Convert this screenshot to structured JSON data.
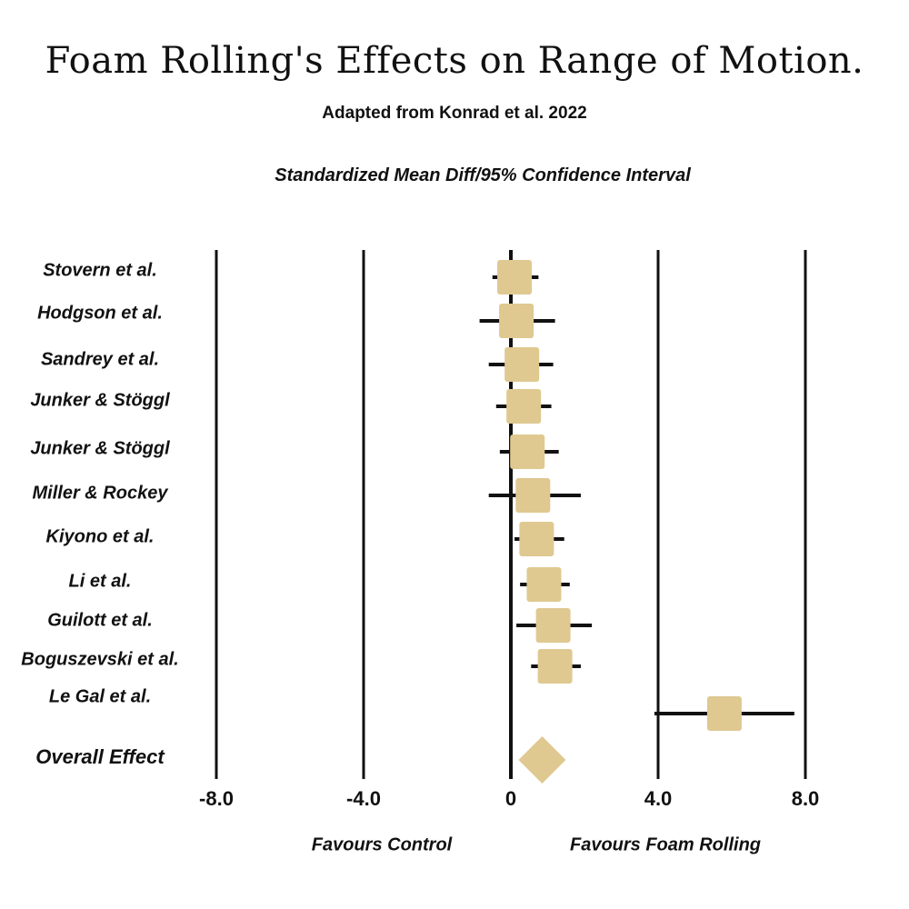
{
  "title": "Foam Rolling's Effects on Range of Motion.",
  "subtitle": "Adapted from Konrad et al. 2022",
  "chart_data": {
    "type": "forest",
    "title": "Foam Rolling's Effects on Range of Motion.",
    "subtitle": "Adapted from Konrad et al. 2022",
    "xlabel": "Standardized Mean Diff/95% Confidence Interval",
    "xlim": [
      -8.0,
      8.0
    ],
    "ticks": [
      -8.0,
      -4.0,
      0,
      4.0,
      8.0
    ],
    "tick_labels": [
      "-8.0",
      "-4.0",
      "0",
      "4.0",
      "8.0"
    ],
    "favours_left": "Favours Control",
    "favours_right": "Favours Foam Rolling",
    "studies": [
      {
        "name": "Stovern et al.",
        "smd": 0.1,
        "ci_low": -0.5,
        "ci_high": 0.75
      },
      {
        "name": "Hodgson et al.",
        "smd": 0.15,
        "ci_low": -0.85,
        "ci_high": 1.2
      },
      {
        "name": "Sandrey et al.",
        "smd": 0.3,
        "ci_low": -0.6,
        "ci_high": 1.15
      },
      {
        "name": "Junker & Stöggl",
        "smd": 0.35,
        "ci_low": -0.4,
        "ci_high": 1.1
      },
      {
        "name": "Junker & Stöggl",
        "smd": 0.45,
        "ci_low": -0.3,
        "ci_high": 1.3
      },
      {
        "name": "Miller & Rockey",
        "smd": 0.6,
        "ci_low": -0.6,
        "ci_high": 1.9
      },
      {
        "name": "Kiyono et al.",
        "smd": 0.7,
        "ci_low": 0.1,
        "ci_high": 1.45
      },
      {
        "name": "Li et al.",
        "smd": 0.9,
        "ci_low": 0.25,
        "ci_high": 1.6
      },
      {
        "name": "Guilott et al.",
        "smd": 1.15,
        "ci_low": 0.15,
        "ci_high": 2.2
      },
      {
        "name": "Boguszevski et al.",
        "smd": 1.2,
        "ci_low": 0.55,
        "ci_high": 1.9
      },
      {
        "name": "Le Gal et al.",
        "smd": 5.8,
        "ci_low": 3.9,
        "ci_high": 7.7
      }
    ],
    "overall": {
      "name": "Overall Effect",
      "smd": 0.85
    }
  },
  "colors": {
    "marker": "#dfc991",
    "line": "#111111",
    "background": "#ffffff"
  }
}
